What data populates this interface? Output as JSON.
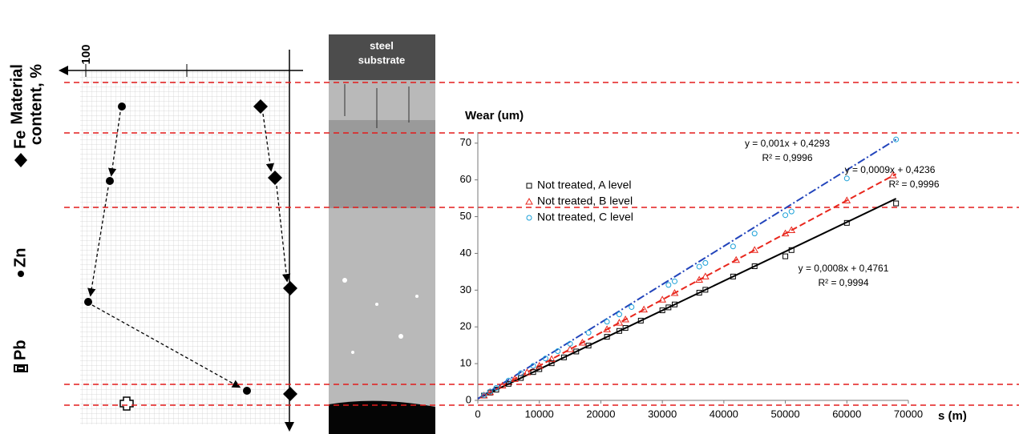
{
  "diagram": {
    "axis_title_lines": [
      "Material",
      "content, %"
    ],
    "axis_tick": "100",
    "elements": [
      "Fe",
      "Zn",
      "Pb"
    ],
    "image_label_lines": [
      "steel",
      "substrate"
    ]
  },
  "chart_data": {
    "type": "scatter",
    "y_label": "Wear (um)",
    "x_label": "s (m)",
    "xlim": [
      0,
      70000
    ],
    "xticks": [
      0,
      10000,
      20000,
      30000,
      40000,
      50000,
      60000,
      70000
    ],
    "ylim": [
      0,
      73
    ],
    "yticks": [
      0,
      10,
      20,
      30,
      40,
      50,
      60,
      70
    ],
    "grid": false,
    "legend": "upper left",
    "series": [
      {
        "name": "Not treated, A level",
        "color": "#000000",
        "marker": "square",
        "x": [
          1000,
          2000,
          3000,
          5000,
          7000,
          9000,
          10000,
          12000,
          14000,
          16000,
          18000,
          21000,
          23000,
          24000,
          26500,
          30000,
          31000,
          32000,
          36000,
          37000,
          41500,
          45000,
          50000,
          51000,
          60000,
          68000
        ],
        "values": [
          1.3,
          2.1,
          2.9,
          4.5,
          6.1,
          7.7,
          8.5,
          10.1,
          11.7,
          13.3,
          14.9,
          17.3,
          18.9,
          19.7,
          21.7,
          24.5,
          25.3,
          26.1,
          29.3,
          30.1,
          33.7,
          36.5,
          39.2,
          40.9,
          48.3,
          53.6
        ]
      },
      {
        "name": "Not treated, B level",
        "color": "#e8261c",
        "marker": "triangle",
        "x": [
          1000,
          2000,
          4000,
          6000,
          8000,
          10000,
          12000,
          15000,
          17000,
          21000,
          23000,
          24000,
          27000,
          30000,
          32000,
          36000,
          37000,
          42000,
          45000,
          50000,
          51000,
          60000,
          67500
        ],
        "values": [
          1.3,
          2.2,
          4.0,
          5.8,
          7.6,
          9.4,
          11.2,
          13.9,
          15.7,
          19.3,
          21.1,
          22.0,
          24.7,
          27.4,
          29.2,
          32.8,
          33.7,
          38.2,
          40.9,
          45.4,
          46.3,
          54.4,
          61.2
        ]
      },
      {
        "name": "Not treated, C level",
        "color": "#1aa0d8",
        "marker": "circle",
        "x": [
          1000,
          2000,
          3000,
          5000,
          7000,
          9000,
          11000,
          13000,
          15000,
          18000,
          21000,
          23000,
          25000,
          31000,
          32000,
          36000,
          37000,
          41500,
          45000,
          50000,
          51000,
          60000,
          68000
        ],
        "values": [
          1.4,
          2.4,
          3.4,
          5.4,
          7.4,
          9.4,
          11.4,
          13.4,
          15.4,
          18.4,
          21.4,
          23.4,
          25.4,
          31.4,
          32.4,
          36.4,
          37.4,
          41.9,
          45.4,
          50.4,
          51.4,
          60.4,
          71.0
        ]
      }
    ],
    "trendlines": [
      {
        "color": "#000000",
        "dash": "none",
        "x": [
          0,
          68000
        ],
        "values": [
          0.4761,
          54.9
        ]
      },
      {
        "color": "#e8261c",
        "dash": "8 4",
        "x": [
          0,
          68000
        ],
        "values": [
          0.4236,
          61.6
        ]
      },
      {
        "color": "#2244bb",
        "dash": "10 3 2 3",
        "x": [
          0,
          68000
        ],
        "values": [
          0.4293,
          71.0
        ]
      }
    ],
    "annotations": [
      "y = 0,001x + 0,4293",
      "R² = 0,9996",
      "y = 0,0009x + 0,4236",
      "R² = 0,9996",
      "y = 0,0008x + 0,4761",
      "R² = 0,9994"
    ]
  }
}
